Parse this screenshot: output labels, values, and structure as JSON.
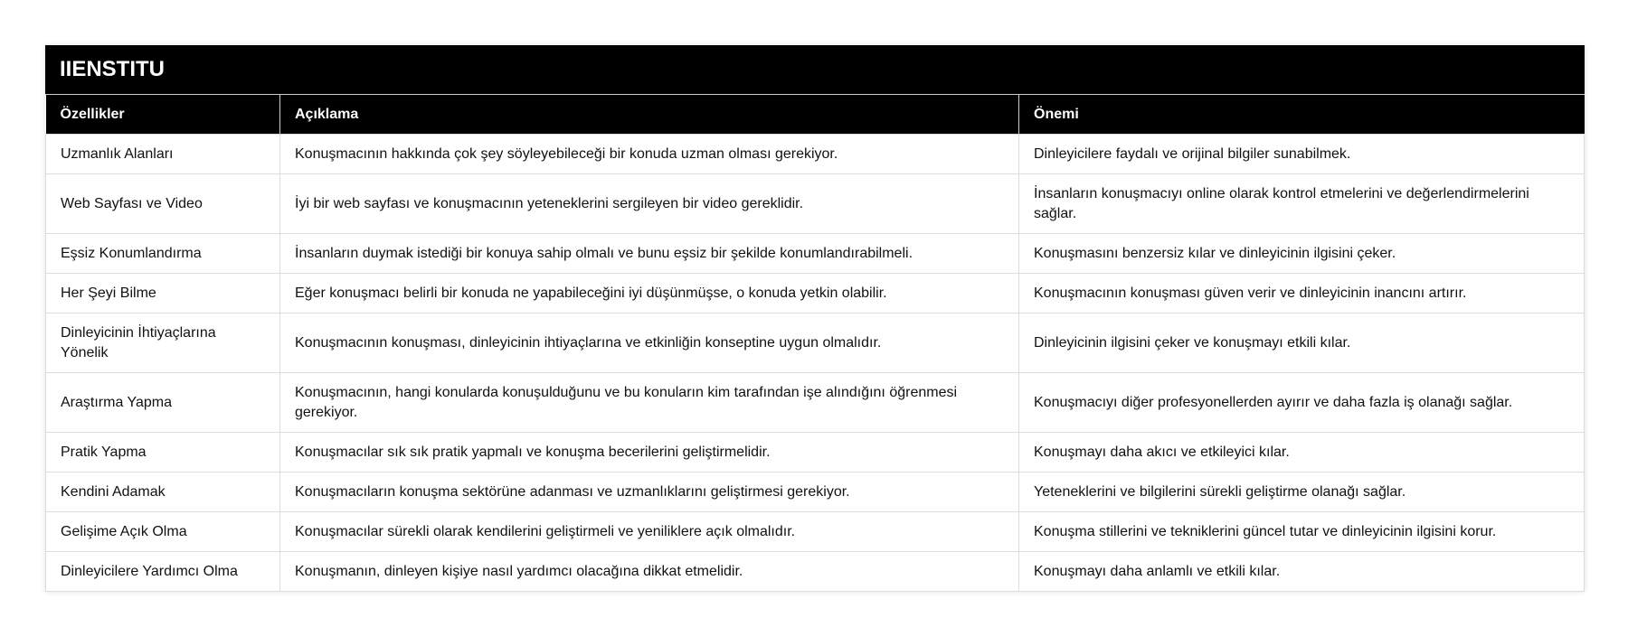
{
  "title": "IIENSTITU",
  "headers": [
    "Özellikler",
    "Açıklama",
    "Önemi"
  ],
  "rows": [
    [
      "Uzmanlık Alanları",
      "Konuşmacının hakkında çok şey söyleyebileceği bir konuda uzman olması gerekiyor.",
      "Dinleyicilere faydalı ve orijinal bilgiler sunabilmek."
    ],
    [
      "Web Sayfası ve Video",
      "İyi bir web sayfası ve konuşmacının yeteneklerini sergileyen bir video gereklidir.",
      "İnsanların konuşmacıyı online olarak kontrol etmelerini ve değerlendirmelerini sağlar."
    ],
    [
      "Eşsiz Konumlandırma",
      "İnsanların duymak istediği bir konuya sahip olmalı ve bunu eşsiz bir şekilde konumlandırabilmeli.",
      "Konuşmasını benzersiz kılar ve dinleyicinin ilgisini çeker."
    ],
    [
      "Her Şeyi Bilme",
      "Eğer konuşmacı belirli bir konuda ne yapabileceğini iyi düşünmüşse, o konuda yetkin olabilir.",
      "Konuşmacının konuşması güven verir ve dinleyicinin inancını artırır."
    ],
    [
      "Dinleyicinin İhtiyaçlarına Yönelik",
      "Konuşmacının konuşması, dinleyicinin ihtiyaçlarına ve etkinliğin konseptine uygun olmalıdır.",
      "Dinleyicinin ilgisini çeker ve konuşmayı etkili kılar."
    ],
    [
      "Araştırma Yapma",
      "Konuşmacının, hangi konularda konuşulduğunu ve bu konuların kim tarafından işe alındığını öğrenmesi gerekiyor.",
      "Konuşmacıyı diğer profesyonellerden ayırır ve daha fazla iş olanağı sağlar."
    ],
    [
      "Pratik Yapma",
      "Konuşmacılar sık sık pratik yapmalı ve konuşma becerilerini geliştirmelidir.",
      "Konuşmayı daha akıcı ve etkileyici kılar."
    ],
    [
      "Kendini Adamak",
      "Konuşmacıların konuşma sektörüne adanması ve uzmanlıklarını geliştirmesi gerekiyor.",
      "Yeteneklerini ve bilgilerini sürekli geliştirme olanağı sağlar."
    ],
    [
      "Gelişime Açık Olma",
      "Konuşmacılar sürekli olarak kendilerini geliştirmeli ve yeniliklere açık olmalıdır.",
      "Konuşma stillerini ve tekniklerini güncel tutar ve dinleyicinin ilgisini korur."
    ],
    [
      "Dinleyicilere Yardımcı Olma",
      "Konuşmanın, dinleyen kişiye nasıl yardımcı olacağına dikkat etmelidir.",
      "Konuşmayı daha anlamlı ve etkili kılar."
    ]
  ]
}
